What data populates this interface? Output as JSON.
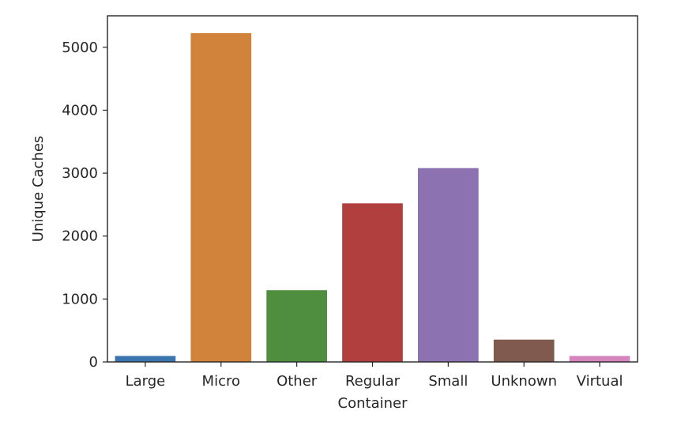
{
  "chart_data": {
    "type": "bar",
    "title": "",
    "xlabel": "Container",
    "ylabel": "Unique Caches",
    "categories": [
      "Large",
      "Micro",
      "Other",
      "Regular",
      "Small",
      "Unknown",
      "Virtual"
    ],
    "values": [
      95,
      5225,
      1140,
      2520,
      3080,
      355,
      95
    ],
    "colors": [
      "#3a75af",
      "#d1833c",
      "#4f8e3e",
      "#b13f3d",
      "#8c72b0",
      "#805a4f",
      "#d684bd"
    ],
    "ylim": [
      0,
      5500
    ],
    "yticks": [
      0,
      1000,
      2000,
      3000,
      4000,
      5000
    ],
    "grid": false,
    "legend": "none"
  }
}
